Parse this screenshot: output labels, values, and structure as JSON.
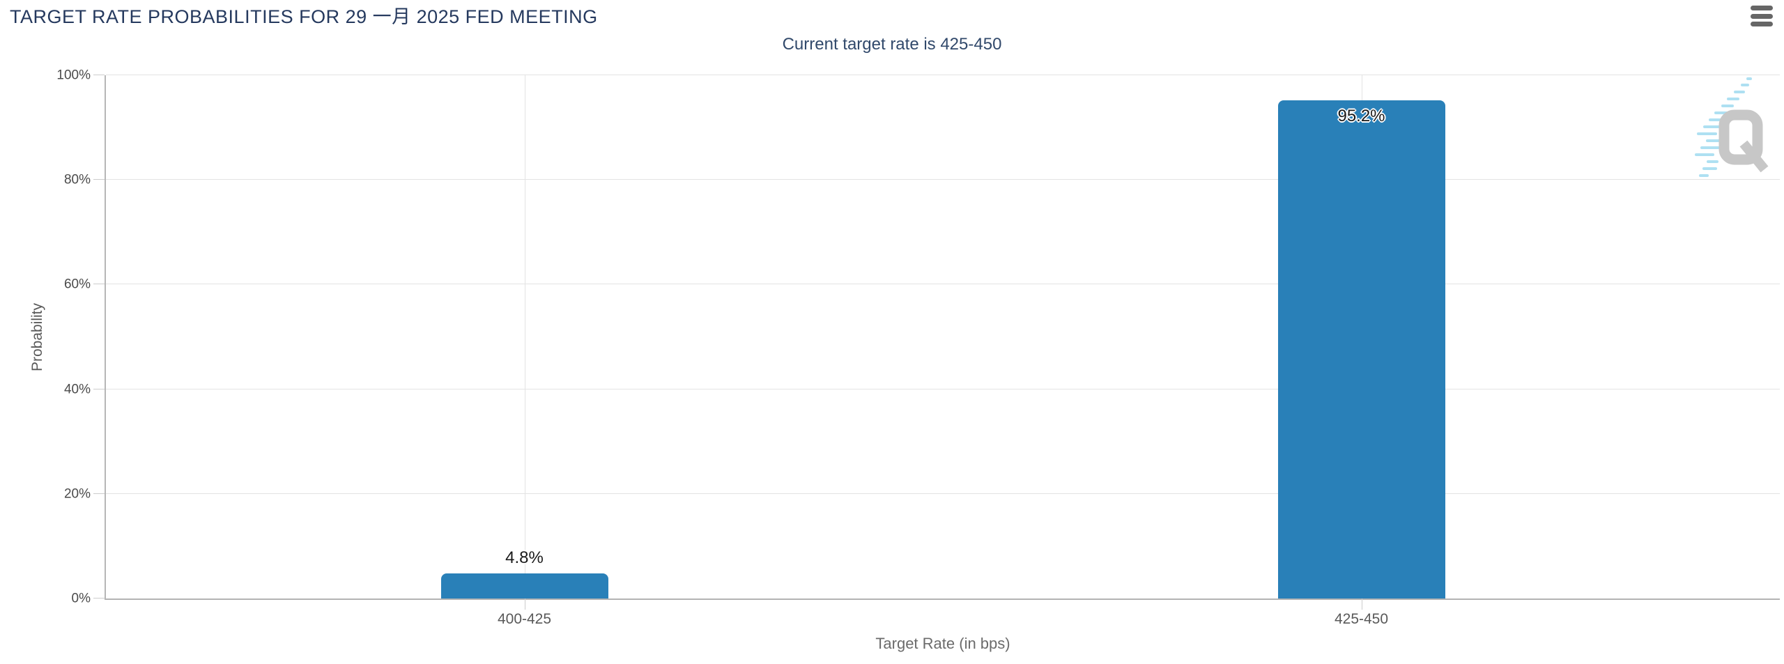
{
  "header": {
    "title": "TARGET RATE PROBABILITIES FOR 29 一月 2025 FED MEETING",
    "menu_icon": "hamburger-menu-icon"
  },
  "watermark_icon": "quikstrike-q-logo",
  "colors": {
    "title": "#25395e",
    "subtitle": "#31496b",
    "bar": "#2980b8",
    "gridline": "#e3e3e3",
    "axis_line": "#b3b3b3",
    "tick_label": "#4a4a4a",
    "category_label": "#595959",
    "axis_title": "#5f5f5f",
    "menu_icon": "#666666",
    "watermark_gray": "#c5c5c5",
    "watermark_blue": "#aadff2"
  },
  "chart_data": {
    "type": "bar",
    "title": "Current target rate is 425-450",
    "categories": [
      "400-425",
      "425-450"
    ],
    "values": [
      4.8,
      95.2
    ],
    "value_labels": [
      "4.8%",
      "95.2%"
    ],
    "value_label_positions": [
      "above",
      "inside"
    ],
    "xlabel": "Target Rate (in bps)",
    "ylabel": "Probability",
    "ylim": [
      0,
      100
    ],
    "yticks": [
      0,
      20,
      40,
      60,
      80,
      100
    ],
    "ytick_labels": [
      "0%",
      "20%",
      "40%",
      "60%",
      "80%",
      "100%"
    ],
    "grid": true,
    "legend": "none",
    "bar_color": "#2980b8"
  }
}
